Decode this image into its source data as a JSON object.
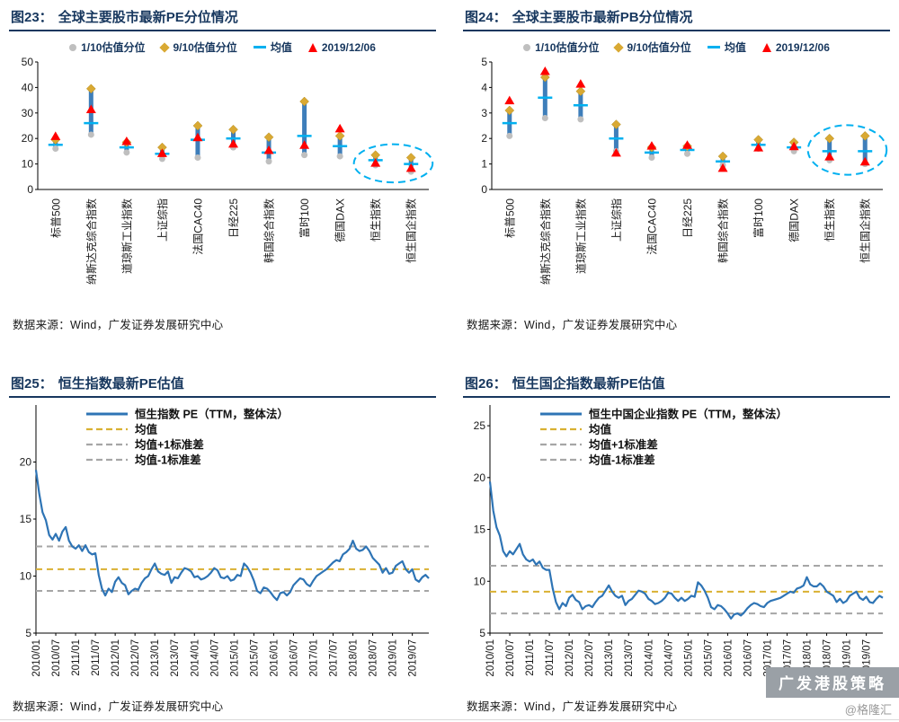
{
  "page": {
    "watermark_box": "广发港股策略",
    "watermark_handle": "@格隆汇"
  },
  "colors": {
    "navy": "#17375e",
    "bar_blue": "#2e74b5",
    "p10_gray": "#bfbfbf",
    "p90_gold": "#d9a933",
    "mean_cyan": "#00b0f0",
    "current_red": "#ff0000",
    "highlight_cyan": "#00b0f0",
    "line_blue": "#2e74b5",
    "mean_yellow": "#d9b032",
    "std_gray": "#a6a6a6",
    "watermark_gray": "#9aa0a6"
  },
  "chart_data": [
    {
      "id": "fig23",
      "type": "scatter",
      "subtype": "percentile-range",
      "fig_label": "图23：",
      "title": "全球主要股市最新PE分位情况",
      "legend": [
        {
          "label": "1/10估值分位",
          "marker": "gray-dot"
        },
        {
          "label": "9/10估值分位",
          "marker": "gold-diamond"
        },
        {
          "label": "均值",
          "marker": "cyan-dash"
        },
        {
          "label": "2019/12/06",
          "marker": "red-triangle"
        }
      ],
      "ylim": [
        0,
        50
      ],
      "yticks": [
        0,
        10,
        20,
        30,
        40,
        50
      ],
      "categories": [
        "标普500",
        "纳斯达克综合指数",
        "道琼斯工业指数",
        "上证综指",
        "法国CAC40",
        "日经225",
        "韩国综合指数",
        "富时100",
        "德国DAX",
        "恒生指数",
        "恒生国企指数"
      ],
      "p10": [
        16.0,
        21.5,
        14.5,
        12.0,
        12.5,
        16.5,
        11.0,
        13.5,
        13.0,
        9.5,
        7.0
      ],
      "p90": [
        19.5,
        39.5,
        18.5,
        16.5,
        25.0,
        23.5,
        20.5,
        34.5,
        21.0,
        13.5,
        12.5
      ],
      "mean": [
        17.5,
        26.0,
        16.5,
        14.0,
        19.5,
        20.0,
        14.5,
        21.0,
        17.0,
        11.5,
        10.0
      ],
      "current": [
        21.0,
        31.5,
        19.0,
        14.3,
        20.5,
        18.0,
        15.5,
        17.5,
        24.0,
        10.5,
        8.5
      ],
      "highlight_last": 2,
      "source": "数据来源：Wind，广发证券发展研究中心"
    },
    {
      "id": "fig24",
      "type": "scatter",
      "subtype": "percentile-range",
      "fig_label": "图24：",
      "title": "全球主要股市最新PB分位情况",
      "legend": [
        {
          "label": "1/10估值分位",
          "marker": "gray-dot"
        },
        {
          "label": "9/10估值分位",
          "marker": "gold-diamond"
        },
        {
          "label": "均值",
          "marker": "cyan-dash"
        },
        {
          "label": "2019/12/06",
          "marker": "red-triangle"
        }
      ],
      "ylim": [
        0,
        5
      ],
      "yticks": [
        0,
        1,
        2,
        3,
        4,
        5
      ],
      "categories": [
        "标普500",
        "纳斯达克综合指数",
        "道琼斯工业指数",
        "上证综指",
        "法国CAC40",
        "日经225",
        "韩国综合指数",
        "富时100",
        "德国DAX",
        "恒生指数",
        "恒生国企指数"
      ],
      "p10": [
        2.1,
        2.8,
        2.75,
        1.5,
        1.25,
        1.4,
        0.95,
        1.6,
        1.5,
        1.15,
        1.0
      ],
      "p90": [
        3.1,
        4.4,
        3.85,
        2.55,
        1.65,
        1.7,
        1.3,
        1.95,
        1.85,
        2.0,
        2.1
      ],
      "mean": [
        2.6,
        3.6,
        3.3,
        2.0,
        1.45,
        1.55,
        1.1,
        1.75,
        1.65,
        1.5,
        1.5
      ],
      "current": [
        3.5,
        4.65,
        4.15,
        1.45,
        1.72,
        1.75,
        0.85,
        1.65,
        1.7,
        1.3,
        1.1
      ],
      "highlight_last": 2,
      "source": "数据来源：Wind，广发证券发展研究中心"
    },
    {
      "id": "fig25",
      "type": "line",
      "fig_label": "图25：",
      "title": "恒生指数最新PE估值",
      "legend": [
        {
          "label": "恒生指数 PE（TTM，整体法）",
          "marker": "blue-line"
        },
        {
          "label": "均值",
          "marker": "yellow-dash"
        },
        {
          "label": "均值+1标准差",
          "marker": "gray-dash"
        },
        {
          "label": "均值-1标准差",
          "marker": "gray-dash"
        }
      ],
      "ylim": [
        5,
        25
      ],
      "yticks": [
        5,
        10,
        15,
        20
      ],
      "mean": 10.6,
      "mean_plus_std": 12.6,
      "mean_minus_std": 8.7,
      "x_tick_every": 6,
      "x_tick_labels": [
        "2010/01",
        "2010/07",
        "2011/01",
        "2011/07",
        "2012/01",
        "2012/07",
        "2013/01",
        "2013/07",
        "2014/01",
        "2014/07",
        "2015/01",
        "2015/07",
        "2016/01",
        "2016/07",
        "2017/01",
        "2017/07",
        "2018/01",
        "2018/07",
        "2019/01",
        "2019/07"
      ],
      "values": [
        19.3,
        17.2,
        15.6,
        14.9,
        13.6,
        13.2,
        13.7,
        13.1,
        13.9,
        14.3,
        13.1,
        12.6,
        12.4,
        12.7,
        12.2,
        12.7,
        12.1,
        11.9,
        12.0,
        10.1,
        8.9,
        8.3,
        8.9,
        8.6,
        9.5,
        9.9,
        9.4,
        9.2,
        8.4,
        8.7,
        8.9,
        8.8,
        9.4,
        9.8,
        10.0,
        10.6,
        11.1,
        10.4,
        10.2,
        10.1,
        10.4,
        9.4,
        9.9,
        9.8,
        10.3,
        10.7,
        10.6,
        10.4,
        9.9,
        10.0,
        9.7,
        9.8,
        10.0,
        10.3,
        10.7,
        10.5,
        9.9,
        9.8,
        10.0,
        9.6,
        9.7,
        10.1,
        10.0,
        11.1,
        10.8,
        10.3,
        9.6,
        8.7,
        8.5,
        9.0,
        8.9,
        8.6,
        8.2,
        7.9,
        8.5,
        8.6,
        8.3,
        8.6,
        9.2,
        9.5,
        9.8,
        9.7,
        9.3,
        9.1,
        9.6,
        10.0,
        10.2,
        10.4,
        10.6,
        10.9,
        11.2,
        11.4,
        11.3,
        11.9,
        12.1,
        12.4,
        13.1,
        12.4,
        12.2,
        12.3,
        12.6,
        12.2,
        11.6,
        11.3,
        11.0,
        10.3,
        10.7,
        10.2,
        10.3,
        10.9,
        11.1,
        11.3,
        10.6,
        10.3,
        10.6,
        9.7,
        9.5,
        9.9,
        10.1,
        9.8
      ],
      "source": "数据来源：Wind，广发证券发展研究中心"
    },
    {
      "id": "fig26",
      "type": "line",
      "fig_label": "图26：",
      "title": "恒生国企指数最新PE估值",
      "legend": [
        {
          "label": "恒生中国企业指数 PE（TTM，整体法）",
          "marker": "blue-line"
        },
        {
          "label": "均值",
          "marker": "yellow-dash"
        },
        {
          "label": "均值+1标准差",
          "marker": "gray-dash"
        },
        {
          "label": "均值-1标准差",
          "marker": "gray-dash"
        }
      ],
      "ylim": [
        5,
        27
      ],
      "yticks": [
        5,
        10,
        15,
        20,
        25
      ],
      "mean": 9.0,
      "mean_plus_std": 11.5,
      "mean_minus_std": 6.9,
      "x_tick_every": 6,
      "x_tick_labels": [
        "2010/01",
        "2010/07",
        "2011/01",
        "2011/07",
        "2012/01",
        "2012/07",
        "2013/01",
        "2013/07",
        "2014/01",
        "2014/07",
        "2015/01",
        "2015/07",
        "2016/01",
        "2016/07",
        "2017/01",
        "2017/07",
        "2018/01",
        "2018/07",
        "2019/01",
        "2019/07"
      ],
      "values": [
        19.6,
        16.8,
        15.2,
        14.4,
        12.9,
        12.4,
        12.9,
        12.6,
        13.1,
        13.6,
        12.6,
        12.1,
        11.9,
        12.1,
        11.6,
        11.9,
        11.3,
        11.1,
        11.1,
        9.3,
        8.0,
        7.3,
        7.9,
        7.6,
        8.4,
        8.7,
        8.2,
        8.0,
        7.3,
        7.6,
        7.7,
        7.5,
        8.0,
        8.4,
        8.6,
        9.1,
        9.6,
        9.0,
        8.6,
        8.4,
        8.6,
        7.7,
        8.1,
        8.3,
        8.7,
        9.1,
        9.0,
        8.8,
        8.3,
        8.1,
        7.8,
        7.9,
        8.1,
        8.4,
        8.9,
        8.8,
        8.4,
        8.1,
        8.4,
        8.1,
        8.3,
        8.6,
        8.5,
        9.9,
        9.6,
        9.1,
        8.4,
        7.5,
        7.3,
        7.7,
        7.6,
        7.3,
        6.9,
        6.4,
        6.8,
        6.9,
        6.7,
        7.0,
        7.4,
        7.7,
        7.9,
        7.8,
        7.6,
        7.5,
        7.9,
        8.1,
        8.2,
        8.3,
        8.4,
        8.6,
        8.8,
        9.0,
        8.9,
        9.3,
        9.4,
        9.6,
        10.4,
        9.7,
        9.5,
        9.5,
        9.8,
        9.5,
        9.0,
        8.8,
        8.6,
        8.0,
        8.3,
        7.9,
        8.1,
        8.6,
        8.8,
        9.0,
        8.4,
        8.2,
        8.5,
        8.0,
        7.9,
        8.3,
        8.6,
        8.4
      ],
      "source": "数据来源：Wind，广发证券发展研究中心"
    }
  ]
}
